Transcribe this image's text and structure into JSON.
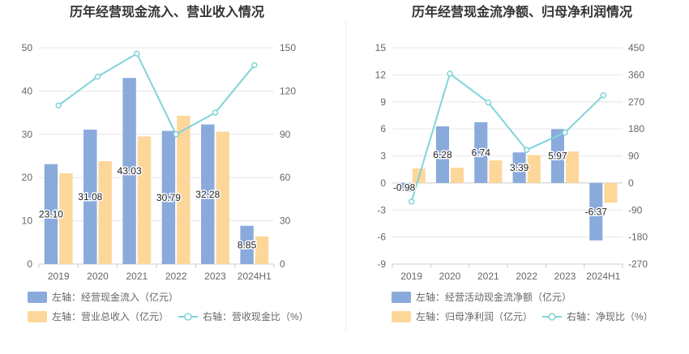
{
  "colors": {
    "bar_left": "#8aaadc",
    "bar_right": "#fdd79a",
    "line": "#7fd4d8",
    "grid": "#e6e6e6",
    "axis": "#cccccc",
    "divider": "#eeeeee"
  },
  "chart_data": [
    {
      "type": "bar+line",
      "title": "历年经营现金流入、营业收入情况",
      "categories": [
        "2019",
        "2020",
        "2021",
        "2022",
        "2023",
        "2024H1"
      ],
      "y_left_ticks": [
        "0",
        "10",
        "20",
        "30",
        "40",
        "50"
      ],
      "y_right_ticks": [
        "0",
        "30",
        "60",
        "90",
        "120",
        "150"
      ],
      "y_left_range": [
        0,
        50
      ],
      "y_right_range": [
        0,
        150
      ],
      "series": [
        {
          "name": "左轴：经营现金流入（亿元）",
          "kind": "bar",
          "axis": "left",
          "values": [
            23.1,
            31.08,
            43.03,
            30.79,
            32.28,
            8.85
          ],
          "labels": [
            "23.10",
            "31.08",
            "43.03",
            "30.79",
            "32.28",
            "8.85"
          ]
        },
        {
          "name": "左轴：营业总收入（亿元）",
          "kind": "bar",
          "axis": "left",
          "values": [
            21.0,
            23.8,
            29.5,
            34.3,
            30.6,
            6.4
          ]
        },
        {
          "name": "右轴：营收现金比（%）",
          "kind": "line",
          "axis": "right",
          "values": [
            110,
            130,
            146,
            90,
            105,
            138
          ]
        }
      ],
      "grid": true,
      "legend_position": "bottom-left"
    },
    {
      "type": "bar+line",
      "title": "历年经营现金流净额、归母净利润情况",
      "categories": [
        "2019",
        "2020",
        "2021",
        "2022",
        "2023",
        "2024H1"
      ],
      "y_left_ticks": [
        "-9",
        "-6",
        "-3",
        "0",
        "3",
        "6",
        "9",
        "12",
        "15"
      ],
      "y_right_ticks": [
        "-270",
        "-180",
        "-90",
        "0",
        "90",
        "180",
        "270",
        "360",
        "450"
      ],
      "y_left_range": [
        -9,
        15
      ],
      "y_right_range": [
        -270,
        450
      ],
      "series": [
        {
          "name": "左轴：经营活动现金流净额（亿元）",
          "kind": "bar",
          "axis": "left",
          "values": [
            -0.98,
            6.28,
            6.74,
            3.39,
            5.97,
            -6.37
          ],
          "labels": [
            "-0.98",
            "6.28",
            "6.74",
            "3.39",
            "5.97",
            "-6.37"
          ]
        },
        {
          "name": "左轴：归母净利润（亿元）",
          "kind": "bar",
          "axis": "left",
          "values": [
            1.6,
            1.7,
            2.5,
            3.1,
            3.5,
            -2.2
          ]
        },
        {
          "name": "右轴：净现比（%）",
          "kind": "line",
          "axis": "right",
          "values": [
            -62,
            364,
            268,
            110,
            168,
            292
          ]
        }
      ],
      "grid": true,
      "legend_position": "bottom-left"
    }
  ]
}
